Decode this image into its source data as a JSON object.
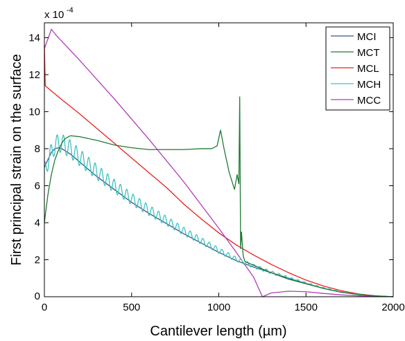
{
  "chart_data": {
    "type": "line",
    "xlabel": "Cantilever length (µm)",
    "ylabel": "First principal strain on the surface",
    "y_multiplier": "x 10",
    "y_multiplier_exponent": "-4",
    "xlim": [
      0,
      2000
    ],
    "ylim": [
      0,
      14.8
    ],
    "x_ticks": [
      0,
      500,
      1000,
      1500,
      2000
    ],
    "y_ticks": [
      2,
      4,
      6,
      8,
      10,
      12,
      14
    ],
    "grid": false,
    "legend_position": "top-right",
    "series": [
      {
        "name": "MCI",
        "color": "#34508e",
        "points": [
          [
            0,
            7.0
          ],
          [
            20,
            7.4
          ],
          [
            40,
            7.8
          ],
          [
            60,
            8.0
          ],
          [
            80,
            8.05
          ],
          [
            100,
            8.0
          ],
          [
            150,
            7.7
          ],
          [
            200,
            7.3
          ],
          [
            300,
            6.5
          ],
          [
            400,
            5.8
          ],
          [
            500,
            5.1
          ],
          [
            600,
            4.5
          ],
          [
            700,
            3.95
          ],
          [
            800,
            3.4
          ],
          [
            900,
            2.9
          ],
          [
            1000,
            2.4
          ],
          [
            1100,
            1.95
          ],
          [
            1200,
            1.6
          ],
          [
            1300,
            1.3
          ],
          [
            1400,
            1.0
          ],
          [
            1500,
            0.72
          ],
          [
            1600,
            0.45
          ],
          [
            1700,
            0.25
          ],
          [
            1800,
            0.12
          ],
          [
            1900,
            0.04
          ],
          [
            2000,
            0.0
          ]
        ]
      },
      {
        "name": "MCT",
        "color": "#1f7a35",
        "points": [
          [
            0,
            4.0
          ],
          [
            20,
            5.5
          ],
          [
            40,
            6.6
          ],
          [
            60,
            7.4
          ],
          [
            80,
            7.9
          ],
          [
            100,
            8.3
          ],
          [
            120,
            8.55
          ],
          [
            150,
            8.7
          ],
          [
            200,
            8.65
          ],
          [
            300,
            8.45
          ],
          [
            400,
            8.2
          ],
          [
            500,
            8.05
          ],
          [
            600,
            7.95
          ],
          [
            700,
            7.95
          ],
          [
            800,
            7.95
          ],
          [
            900,
            8.0
          ],
          [
            960,
            8.0
          ],
          [
            990,
            8.15
          ],
          [
            1010,
            9.0
          ],
          [
            1030,
            8.0
          ],
          [
            1060,
            6.7
          ],
          [
            1090,
            5.8
          ],
          [
            1105,
            6.6
          ],
          [
            1115,
            6.1
          ],
          [
            1120,
            10.8
          ],
          [
            1125,
            2.6
          ],
          [
            1130,
            3.5
          ],
          [
            1140,
            2.2
          ],
          [
            1150,
            1.9
          ],
          [
            1200,
            1.7
          ],
          [
            1300,
            1.3
          ],
          [
            1400,
            0.95
          ],
          [
            1500,
            0.7
          ],
          [
            1600,
            0.45
          ],
          [
            1700,
            0.25
          ],
          [
            1800,
            0.12
          ],
          [
            1900,
            0.04
          ],
          [
            2000,
            0.0
          ]
        ]
      },
      {
        "name": "MCL",
        "color": "#e8201a",
        "points": [
          [
            0,
            13.6
          ],
          [
            5,
            11.4
          ],
          [
            30,
            11.2
          ],
          [
            100,
            10.65
          ],
          [
            200,
            9.9
          ],
          [
            300,
            9.1
          ],
          [
            400,
            8.3
          ],
          [
            500,
            7.5
          ],
          [
            600,
            6.7
          ],
          [
            700,
            5.9
          ],
          [
            800,
            5.0
          ],
          [
            900,
            4.2
          ],
          [
            1000,
            3.45
          ],
          [
            1100,
            2.8
          ],
          [
            1200,
            2.25
          ],
          [
            1300,
            1.75
          ],
          [
            1400,
            1.3
          ],
          [
            1500,
            0.9
          ],
          [
            1600,
            0.58
          ],
          [
            1700,
            0.33
          ],
          [
            1800,
            0.15
          ],
          [
            1900,
            0.05
          ],
          [
            2000,
            0.0
          ]
        ]
      },
      {
        "name": "MCH",
        "color": "#3fc2bd",
        "amplitude": 1.0,
        "periods": 55,
        "points": [
          [
            0,
            7.3
          ],
          [
            20,
            7.7
          ],
          [
            40,
            8.3
          ],
          [
            60,
            8.65
          ],
          [
            80,
            8.8
          ],
          [
            100,
            8.8
          ],
          [
            150,
            8.45
          ],
          [
            200,
            8.0
          ],
          [
            300,
            7.15
          ],
          [
            400,
            6.35
          ],
          [
            500,
            5.6
          ],
          [
            600,
            4.95
          ],
          [
            700,
            4.35
          ],
          [
            800,
            3.75
          ],
          [
            900,
            3.2
          ],
          [
            1000,
            2.65
          ],
          [
            1100,
            2.15
          ],
          [
            1200,
            1.75
          ],
          [
            1300,
            1.4
          ],
          [
            1400,
            1.08
          ],
          [
            1500,
            0.78
          ],
          [
            1600,
            0.5
          ],
          [
            1700,
            0.28
          ],
          [
            1800,
            0.13
          ],
          [
            1900,
            0.04
          ],
          [
            2000,
            0.0
          ]
        ]
      },
      {
        "name": "MCC",
        "color": "#b03ab8",
        "points": [
          [
            0,
            13.4
          ],
          [
            40,
            14.45
          ],
          [
            70,
            14.1
          ],
          [
            200,
            12.8
          ],
          [
            400,
            10.7
          ],
          [
            600,
            8.5
          ],
          [
            800,
            6.2
          ],
          [
            1000,
            3.7
          ],
          [
            1100,
            2.4
          ],
          [
            1200,
            1.05
          ],
          [
            1250,
            0.0
          ],
          [
            1300,
            0.2
          ],
          [
            1400,
            0.3
          ],
          [
            1500,
            0.27
          ],
          [
            1600,
            0.18
          ],
          [
            1700,
            0.1
          ],
          [
            1800,
            0.05
          ],
          [
            1900,
            0.02
          ],
          [
            2000,
            0.0
          ]
        ]
      }
    ]
  }
}
